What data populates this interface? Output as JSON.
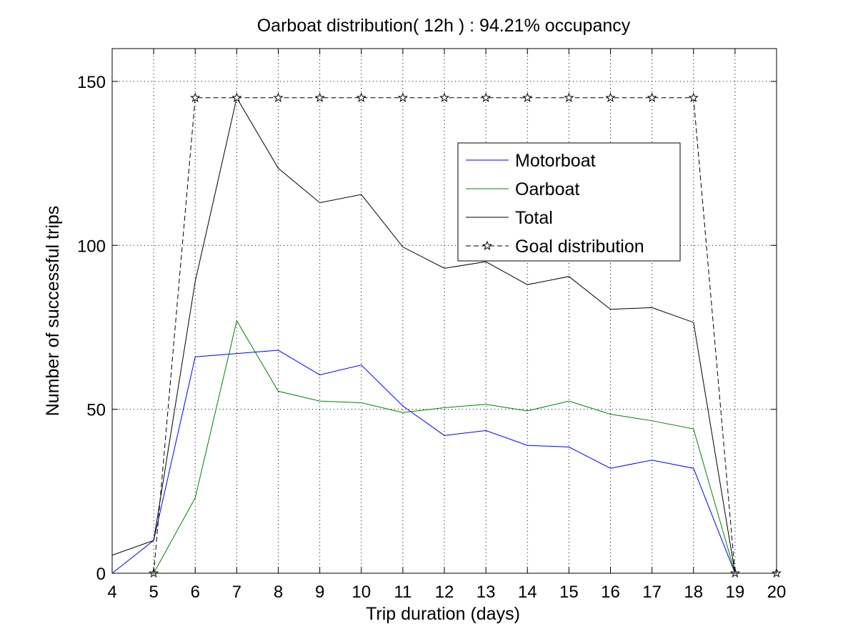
{
  "chart_data": {
    "type": "line",
    "title": "Oarboat distribution( 12h ) : 94.21% occupancy",
    "xlabel": "Trip duration (days)",
    "ylabel": "Number of successful trips",
    "xlim": [
      4,
      20
    ],
    "ylim": [
      0,
      160
    ],
    "xticks": [
      4,
      5,
      6,
      7,
      8,
      9,
      10,
      11,
      12,
      13,
      14,
      15,
      16,
      17,
      18,
      19,
      20
    ],
    "yticks": [
      0,
      50,
      100,
      150
    ],
    "grid": true,
    "legend_position": "top-right",
    "series": [
      {
        "name": "Motorboat",
        "color": "#0000ff",
        "style": "solid",
        "marker": "none",
        "x": [
          4,
          5,
          6,
          7,
          8,
          9,
          10,
          11,
          12,
          13,
          14,
          15,
          16,
          17,
          18,
          19
        ],
        "values": [
          0,
          10,
          66,
          67,
          68,
          60.5,
          63.5,
          51,
          42,
          43.5,
          39,
          38.5,
          32,
          34.5,
          32,
          0
        ]
      },
      {
        "name": "Oarboat",
        "color": "#008000",
        "style": "solid",
        "marker": "none",
        "x": [
          4,
          5,
          6,
          7,
          8,
          9,
          10,
          11,
          12,
          13,
          14,
          15,
          16,
          17,
          18,
          19
        ],
        "values": [
          0,
          0,
          23,
          77,
          55.5,
          52.5,
          52,
          49,
          50.5,
          51.5,
          49.5,
          52.5,
          48.5,
          46.5,
          44,
          0
        ]
      },
      {
        "name": "Total",
        "color": "#000000",
        "style": "solid",
        "marker": "none",
        "x": [
          4,
          5,
          6,
          7,
          8,
          9,
          10,
          11,
          12,
          13,
          14,
          15,
          16,
          17,
          18,
          19
        ],
        "values": [
          5.5,
          10,
          89,
          145,
          123.5,
          113,
          115.5,
          99.5,
          93,
          95,
          88,
          90.5,
          80.5,
          81,
          76.5,
          0
        ]
      },
      {
        "name": "Goal distribution",
        "color": "#000000",
        "style": "dashed",
        "marker": "star",
        "x": [
          5,
          6,
          7,
          8,
          9,
          10,
          11,
          12,
          13,
          14,
          15,
          16,
          17,
          18,
          19,
          20
        ],
        "values": [
          0,
          145,
          145,
          145,
          145,
          145,
          145,
          145,
          145,
          145,
          145,
          145,
          145,
          145,
          0,
          0
        ]
      }
    ]
  }
}
